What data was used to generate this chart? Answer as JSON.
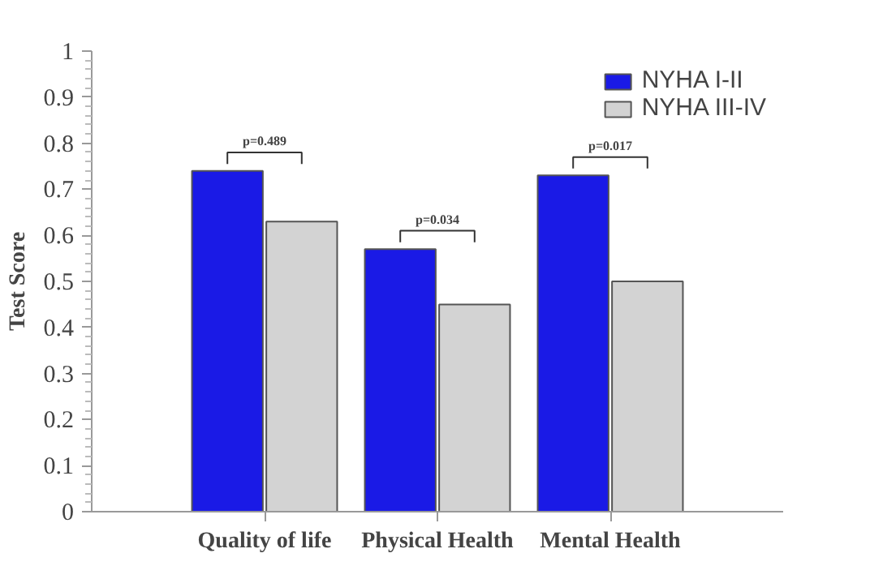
{
  "chart_data": {
    "type": "bar",
    "ylabel": "Test Score",
    "categories": [
      "Quality of life",
      "Physical Health",
      "Mental Health"
    ],
    "series": [
      {
        "name": "NYHA I-II",
        "color": "#1a1ae6",
        "values": [
          0.74,
          0.57,
          0.73
        ]
      },
      {
        "name": "NYHA III-IV",
        "color": "#d3d3d3",
        "values": [
          0.63,
          0.45,
          0.5
        ]
      }
    ],
    "ylim": [
      0,
      1
    ],
    "yticks": [
      0,
      0.1,
      0.2,
      0.3,
      0.4,
      0.5,
      0.6,
      0.7,
      0.8,
      0.9,
      1
    ],
    "annotations": [
      "p=0.489",
      "p=0.034",
      "p=0.017"
    ],
    "legend": "top right",
    "grid": false
  }
}
